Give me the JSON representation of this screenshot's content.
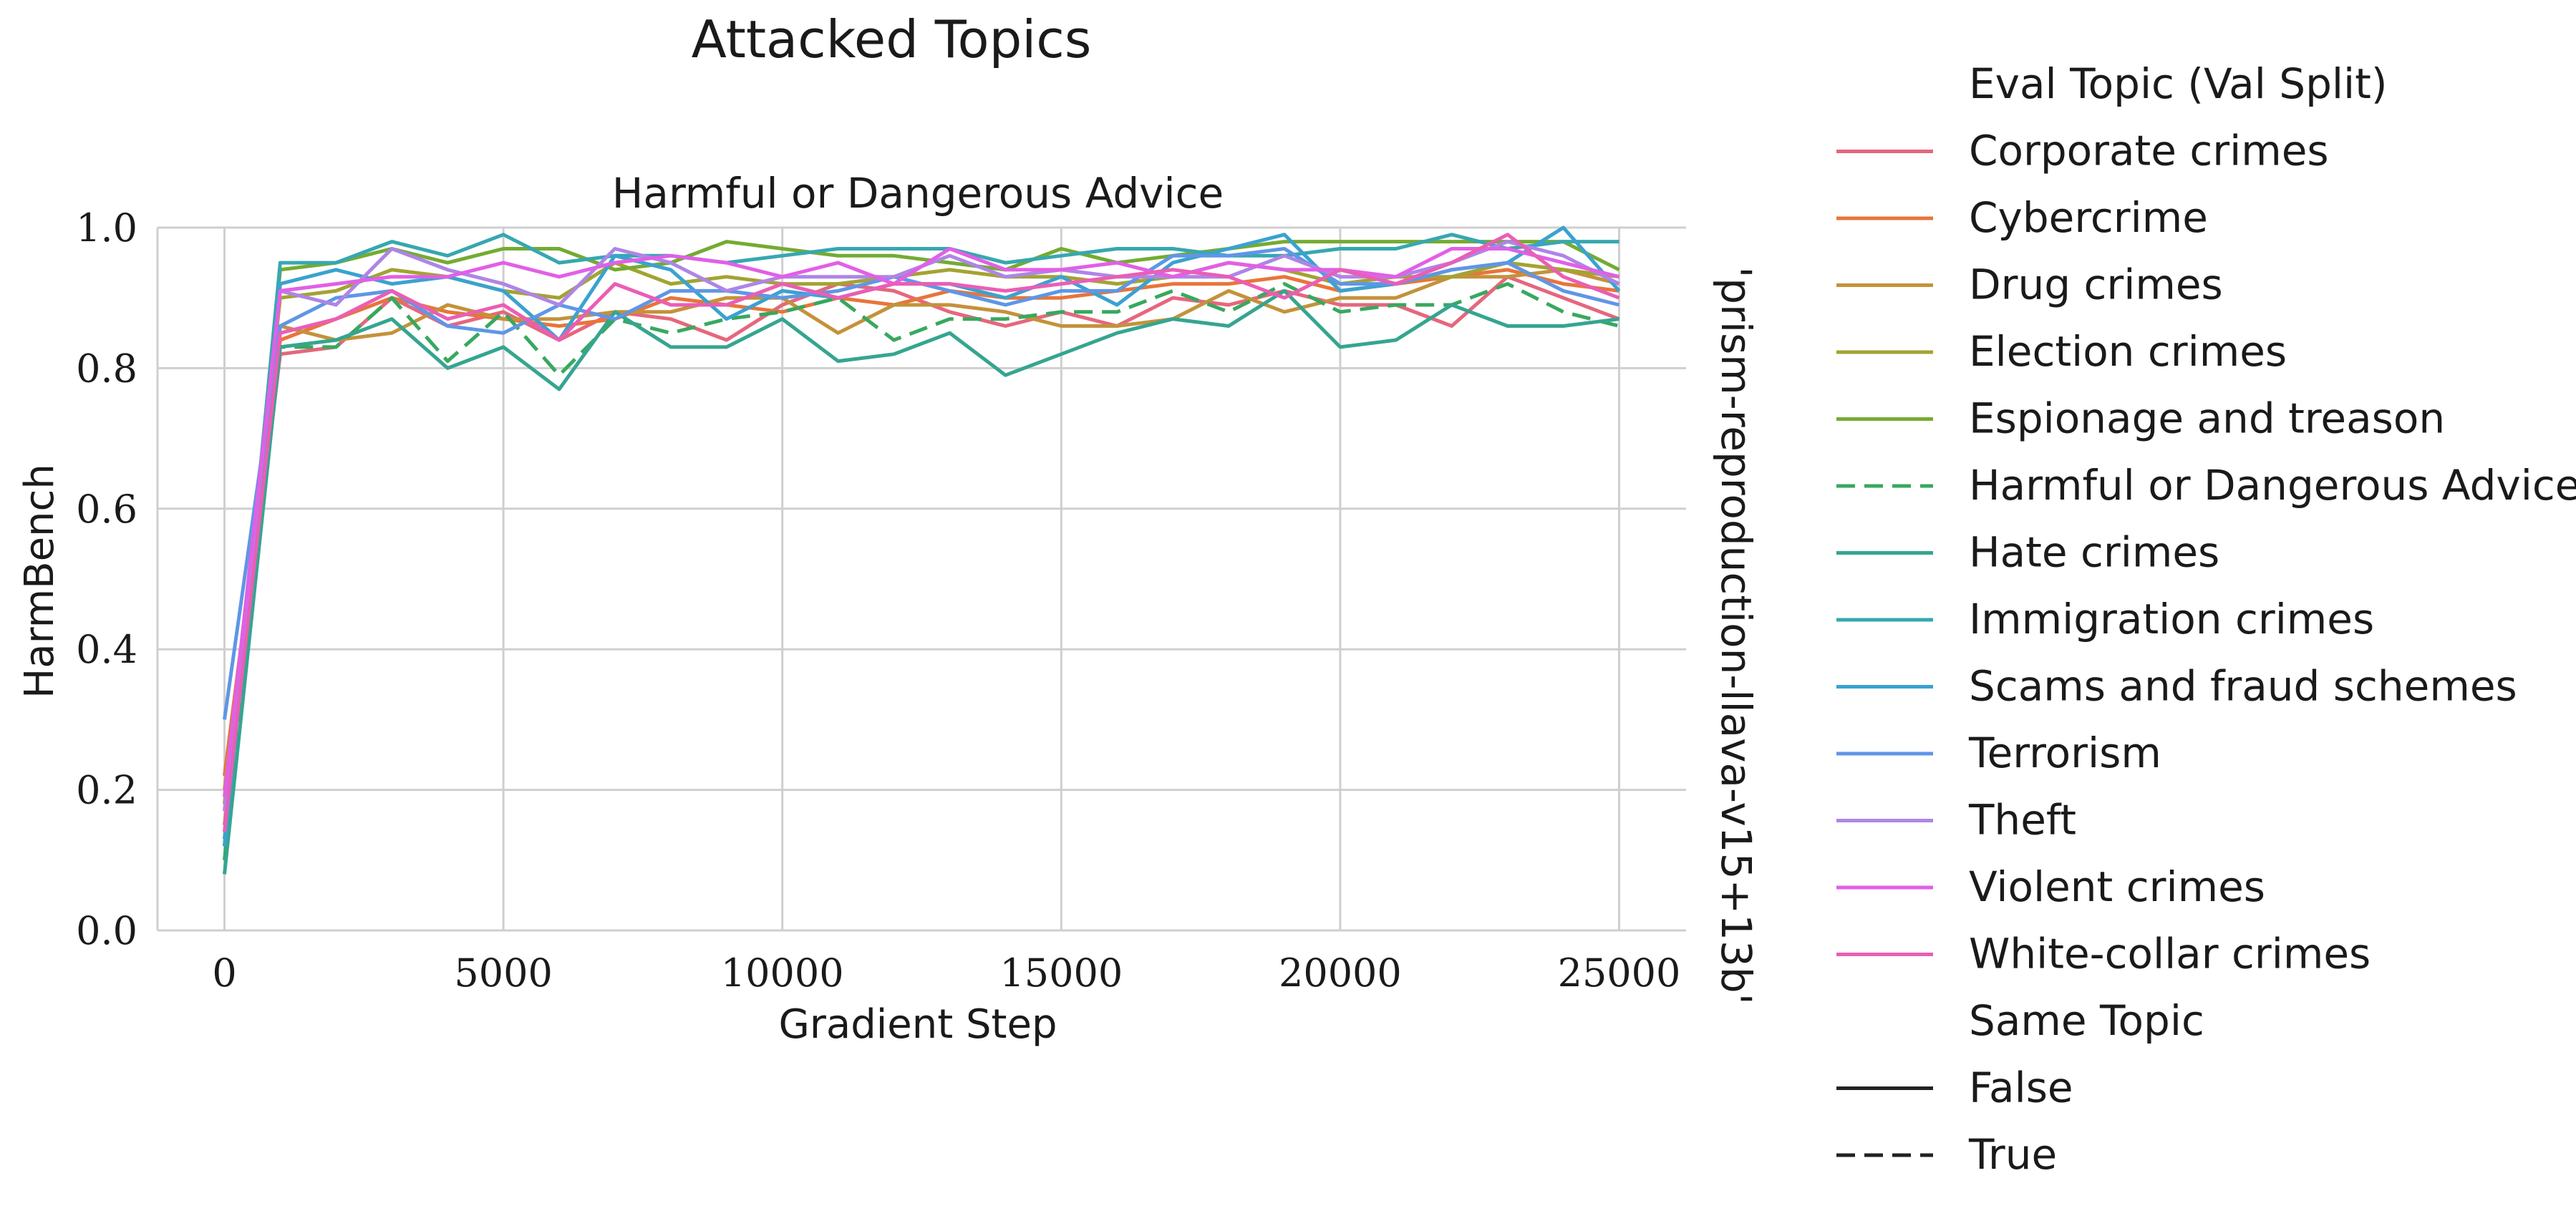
{
  "figure": {
    "suptitle": "Attacked Topics",
    "panel_title": "Harmful or Dangerous Advice",
    "side_label": "'prism-reproduction-llava-v15+13b'"
  },
  "legend": {
    "title_hue": "Eval Topic (Val Split)",
    "title_style": "Same Topic",
    "style_entries": [
      {
        "label": "False",
        "dash": "solid"
      },
      {
        "label": "True",
        "dash": "dashed"
      }
    ]
  },
  "chart_data": {
    "type": "line",
    "title": "Harmful or Dangerous Advice",
    "xlabel": "Gradient Step",
    "ylabel": "HarmBench",
    "xlim": [
      -1200,
      26200
    ],
    "ylim": [
      0,
      1.0
    ],
    "xticks": [
      0,
      5000,
      10000,
      15000,
      20000,
      25000
    ],
    "yticks": [
      0.0,
      0.2,
      0.4,
      0.6,
      0.8,
      1.0
    ],
    "xtick_labels": [
      "0",
      "5000",
      "10000",
      "15000",
      "20000",
      "25000"
    ],
    "ytick_labels": [
      "0.0",
      "0.2",
      "0.4",
      "0.6",
      "0.8",
      "1.0"
    ],
    "grid": true,
    "legend_position": "right",
    "x": [
      0,
      1000,
      2000,
      3000,
      4000,
      5000,
      6000,
      7000,
      8000,
      9000,
      10000,
      11000,
      12000,
      13000,
      14000,
      15000,
      16000,
      17000,
      18000,
      19000,
      20000,
      21000,
      22000,
      23000,
      24000,
      25000
    ],
    "series": [
      {
        "name": "Corporate crimes",
        "color": "#e5677d",
        "dash": "solid",
        "values": [
          0.15,
          0.82,
          0.83,
          0.9,
          0.86,
          0.88,
          0.84,
          0.88,
          0.87,
          0.84,
          0.89,
          0.92,
          0.91,
          0.88,
          0.86,
          0.88,
          0.86,
          0.9,
          0.89,
          0.91,
          0.89,
          0.89,
          0.86,
          0.93,
          0.9,
          0.87
        ]
      },
      {
        "name": "Cybercrime",
        "color": "#e8753a",
        "dash": "solid",
        "values": [
          0.22,
          0.84,
          0.87,
          0.9,
          0.88,
          0.87,
          0.86,
          0.87,
          0.9,
          0.89,
          0.88,
          0.9,
          0.89,
          0.91,
          0.9,
          0.9,
          0.91,
          0.92,
          0.92,
          0.93,
          0.91,
          0.92,
          0.93,
          0.94,
          0.92,
          0.91
        ]
      },
      {
        "name": "Drug crimes",
        "color": "#c4923a",
        "dash": "solid",
        "values": [
          0.2,
          0.86,
          0.84,
          0.85,
          0.89,
          0.87,
          0.87,
          0.88,
          0.88,
          0.9,
          0.9,
          0.85,
          0.89,
          0.89,
          0.88,
          0.86,
          0.86,
          0.87,
          0.91,
          0.88,
          0.9,
          0.9,
          0.93,
          0.93,
          0.94,
          0.92
        ]
      },
      {
        "name": "Election crimes",
        "color": "#a3a332",
        "dash": "solid",
        "values": [
          0.18,
          0.9,
          0.91,
          0.94,
          0.93,
          0.91,
          0.9,
          0.95,
          0.92,
          0.93,
          0.92,
          0.92,
          0.93,
          0.94,
          0.93,
          0.93,
          0.92,
          0.93,
          0.95,
          0.94,
          0.92,
          0.93,
          0.93,
          0.95,
          0.94,
          0.93
        ]
      },
      {
        "name": "Espionage and treason",
        "color": "#74ab32",
        "dash": "solid",
        "values": [
          0.12,
          0.94,
          0.95,
          0.97,
          0.95,
          0.97,
          0.97,
          0.94,
          0.95,
          0.98,
          0.97,
          0.96,
          0.96,
          0.95,
          0.94,
          0.97,
          0.95,
          0.96,
          0.97,
          0.98,
          0.98,
          0.98,
          0.98,
          0.98,
          0.98,
          0.94
        ]
      },
      {
        "name": "Harmful or Dangerous Advice",
        "color": "#38a85f",
        "dash": "dashed",
        "values": [
          0.1,
          0.83,
          0.83,
          0.9,
          0.81,
          0.88,
          0.79,
          0.87,
          0.85,
          0.87,
          0.88,
          0.9,
          0.84,
          0.87,
          0.87,
          0.88,
          0.88,
          0.91,
          0.88,
          0.92,
          0.88,
          0.89,
          0.89,
          0.92,
          0.88,
          0.86
        ]
      },
      {
        "name": "Hate crimes",
        "color": "#35a590",
        "dash": "solid",
        "values": [
          0.08,
          0.83,
          0.84,
          0.87,
          0.8,
          0.83,
          0.77,
          0.88,
          0.83,
          0.83,
          0.87,
          0.81,
          0.82,
          0.85,
          0.79,
          0.82,
          0.85,
          0.87,
          0.86,
          0.91,
          0.83,
          0.84,
          0.89,
          0.86,
          0.86,
          0.87
        ]
      },
      {
        "name": "Immigration crimes",
        "color": "#37a7b0",
        "dash": "solid",
        "values": [
          0.13,
          0.95,
          0.95,
          0.98,
          0.96,
          0.99,
          0.95,
          0.96,
          0.96,
          0.95,
          0.96,
          0.97,
          0.97,
          0.97,
          0.95,
          0.96,
          0.97,
          0.97,
          0.96,
          0.96,
          0.97,
          0.97,
          0.99,
          0.97,
          0.98,
          0.98
        ]
      },
      {
        "name": "Scams and fraud schemes",
        "color": "#3aa2d0",
        "dash": "solid",
        "values": [
          0.12,
          0.92,
          0.94,
          0.92,
          0.93,
          0.91,
          0.84,
          0.96,
          0.94,
          0.87,
          0.91,
          0.9,
          0.92,
          0.92,
          0.9,
          0.93,
          0.89,
          0.95,
          0.97,
          0.99,
          0.91,
          0.92,
          0.94,
          0.95,
          1.0,
          0.91
        ]
      },
      {
        "name": "Terrorism",
        "color": "#5f96e6",
        "dash": "solid",
        "values": [
          0.3,
          0.86,
          0.9,
          0.91,
          0.86,
          0.85,
          0.89,
          0.87,
          0.91,
          0.91,
          0.9,
          0.91,
          0.93,
          0.91,
          0.89,
          0.91,
          0.91,
          0.96,
          0.96,
          0.97,
          0.92,
          0.92,
          0.94,
          0.95,
          0.91,
          0.89
        ]
      },
      {
        "name": "Theft",
        "color": "#ae85e6",
        "dash": "solid",
        "values": [
          0.17,
          0.91,
          0.89,
          0.97,
          0.94,
          0.92,
          0.89,
          0.97,
          0.95,
          0.91,
          0.93,
          0.93,
          0.93,
          0.96,
          0.93,
          0.94,
          0.93,
          0.93,
          0.93,
          0.96,
          0.93,
          0.93,
          0.95,
          0.98,
          0.96,
          0.92
        ]
      },
      {
        "name": "Violent crimes",
        "color": "#e25fe6",
        "dash": "solid",
        "values": [
          0.19,
          0.91,
          0.92,
          0.93,
          0.93,
          0.95,
          0.93,
          0.95,
          0.96,
          0.95,
          0.93,
          0.95,
          0.92,
          0.97,
          0.94,
          0.94,
          0.95,
          0.93,
          0.95,
          0.94,
          0.94,
          0.93,
          0.97,
          0.97,
          0.95,
          0.93
        ]
      },
      {
        "name": "White-collar crimes",
        "color": "#ea5eb4",
        "dash": "solid",
        "values": [
          0.14,
          0.85,
          0.87,
          0.91,
          0.87,
          0.89,
          0.84,
          0.92,
          0.89,
          0.89,
          0.92,
          0.9,
          0.92,
          0.92,
          0.91,
          0.92,
          0.93,
          0.94,
          0.93,
          0.9,
          0.94,
          0.92,
          0.95,
          0.99,
          0.93,
          0.9
        ]
      }
    ]
  }
}
